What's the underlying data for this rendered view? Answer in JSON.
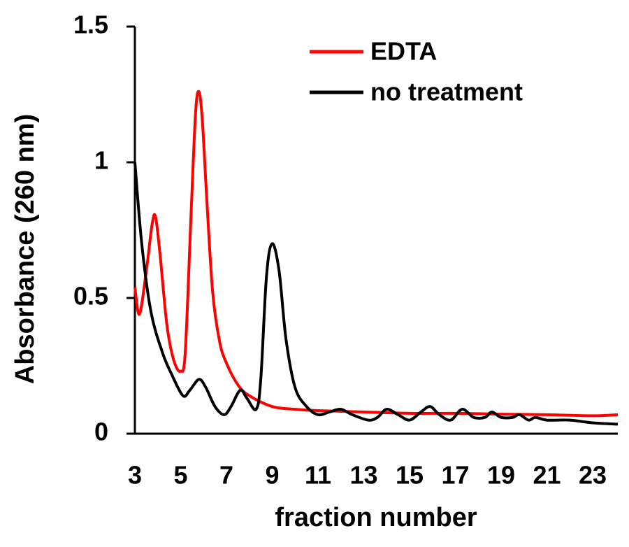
{
  "chart_data": {
    "type": "line",
    "xlabel": "fraction number",
    "ylabel": "Absorbance (260 nm)",
    "xlim": [
      3,
      24.1
    ],
    "ylim": [
      0,
      1.5
    ],
    "xticks": [
      3,
      5,
      7,
      9,
      11,
      13,
      15,
      17,
      19,
      21,
      23
    ],
    "yticks": [
      0,
      0.5,
      1,
      1.5
    ],
    "legend": "upper right",
    "series": [
      {
        "name": "EDTA",
        "color": "#ff0000",
        "x": [
          3,
          3.2,
          3.5,
          3.75,
          3.9,
          4.1,
          4.4,
          4.7,
          5.0,
          5.2,
          5.45,
          5.65,
          5.8,
          5.95,
          6.15,
          6.4,
          6.7,
          7,
          7.5,
          8,
          9,
          10,
          11,
          13,
          15,
          17,
          19,
          21,
          23,
          24.1
        ],
        "values": [
          0.54,
          0.44,
          0.6,
          0.77,
          0.8,
          0.66,
          0.4,
          0.27,
          0.23,
          0.3,
          0.8,
          1.18,
          1.26,
          1.15,
          0.85,
          0.52,
          0.34,
          0.26,
          0.18,
          0.14,
          0.1,
          0.09,
          0.085,
          0.08,
          0.075,
          0.075,
          0.072,
          0.07,
          0.066,
          0.07
        ]
      },
      {
        "name": "no treatment",
        "color": "#000000",
        "x": [
          3,
          3.3,
          3.7,
          4.2,
          4.6,
          5.1,
          5.4,
          5.8,
          6.1,
          6.5,
          6.9,
          7.2,
          7.6,
          7.9,
          8.3,
          8.5,
          8.75,
          9.0,
          9.3,
          9.6,
          10,
          10.5,
          11,
          11.5,
          12,
          12.5,
          13.2,
          13.6,
          14,
          14.5,
          15,
          15.5,
          15.9,
          16.3,
          16.8,
          17.3,
          17.8,
          18.3,
          18.6,
          19,
          19.5,
          19.8,
          20.2,
          20.5,
          21,
          22,
          23,
          24.1
        ],
        "values": [
          1.0,
          0.7,
          0.45,
          0.3,
          0.22,
          0.14,
          0.16,
          0.2,
          0.17,
          0.1,
          0.07,
          0.1,
          0.16,
          0.13,
          0.09,
          0.2,
          0.58,
          0.7,
          0.6,
          0.35,
          0.17,
          0.1,
          0.07,
          0.08,
          0.09,
          0.07,
          0.05,
          0.06,
          0.09,
          0.07,
          0.05,
          0.08,
          0.1,
          0.07,
          0.05,
          0.09,
          0.06,
          0.06,
          0.08,
          0.06,
          0.06,
          0.07,
          0.05,
          0.06,
          0.05,
          0.05,
          0.04,
          0.035
        ]
      }
    ]
  }
}
